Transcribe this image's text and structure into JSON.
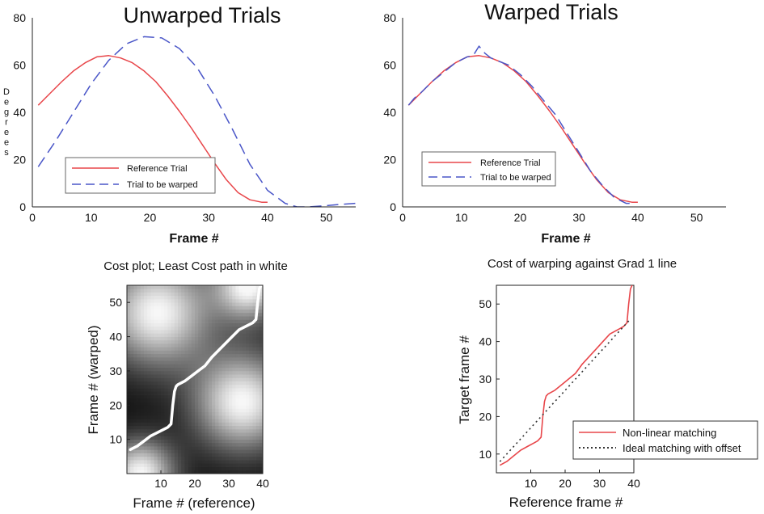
{
  "chart_data": [
    {
      "type": "line",
      "title": "Unwarped Trials",
      "xlabel": "Frame #",
      "ylabel": "Degrees",
      "xlim": [
        0,
        55
      ],
      "ylim": [
        0,
        80
      ],
      "xticks": [
        "0",
        "10",
        "20",
        "30",
        "40",
        "50"
      ],
      "yticks": [
        "0",
        "20",
        "40",
        "60",
        "80"
      ],
      "legend": "bottom-left",
      "series": [
        {
          "name": "Reference Trial",
          "color": "#e8464a",
          "style": "solid",
          "x": [
            1,
            3,
            5,
            7,
            9,
            11,
            13,
            15,
            17,
            19,
            21,
            23,
            25,
            27,
            29,
            31,
            33,
            35,
            37,
            39,
            40
          ],
          "y": [
            43,
            48,
            53,
            57.5,
            61,
            63.5,
            64,
            63,
            61,
            57.5,
            53,
            47,
            40.5,
            33.5,
            26,
            18.5,
            11.5,
            6,
            3,
            2,
            2
          ]
        },
        {
          "name": "Trial to be warped",
          "color": "#4a56c8",
          "style": "dashed",
          "x": [
            1,
            4,
            7,
            10,
            13,
            16,
            19,
            22,
            25,
            28,
            31,
            34,
            37,
            40,
            43,
            45,
            47,
            50,
            52,
            55
          ],
          "y": [
            17,
            28,
            40,
            52,
            62,
            69,
            72,
            71.5,
            67,
            59,
            47,
            33,
            18,
            7,
            1.5,
            0,
            0,
            0.5,
            1,
            1.5
          ]
        }
      ]
    },
    {
      "type": "line",
      "title": "Warped Trials",
      "xlabel": "Frame #",
      "xlim": [
        0,
        55
      ],
      "ylim": [
        0,
        80
      ],
      "xticks": [
        "0",
        "10",
        "20",
        "30",
        "40",
        "50"
      ],
      "yticks": [
        "0",
        "20",
        "40",
        "60",
        "80"
      ],
      "legend": "bottom-left",
      "series": [
        {
          "name": "Reference Trial",
          "color": "#e8464a",
          "style": "solid",
          "x": [
            1,
            3,
            5,
            7,
            9,
            11,
            13,
            15,
            17,
            19,
            21,
            23,
            25,
            27,
            29,
            31,
            33,
            35,
            37,
            39,
            40
          ],
          "y": [
            43,
            48,
            53,
            57.5,
            61,
            63.5,
            64,
            63,
            61,
            57.5,
            53,
            47,
            40.5,
            33.5,
            26,
            18.5,
            11.5,
            6,
            3,
            2,
            2
          ]
        },
        {
          "name": "Trial to be warped",
          "color": "#4a56c8",
          "style": "dashed",
          "x": [
            1,
            2,
            3,
            5,
            7,
            9,
            11,
            12,
            13,
            14,
            15,
            16,
            18,
            20,
            22,
            24,
            26,
            28,
            30,
            32,
            34,
            36,
            38,
            39
          ],
          "y": [
            43,
            46,
            48,
            53,
            57,
            61,
            63.5,
            64,
            68,
            65,
            63,
            62,
            60,
            56,
            51,
            45,
            39,
            31,
            23,
            15,
            9,
            4,
            1.5,
            1.5
          ]
        }
      ]
    },
    {
      "type": "heatmap",
      "title": "Cost plot; Least Cost path in white",
      "xlabel": "Frame # (reference)",
      "ylabel": "Frame # (warped)",
      "xlim": [
        0,
        40
      ],
      "ylim": [
        0,
        55
      ],
      "xticks": [
        "10",
        "20",
        "30",
        "40"
      ],
      "yticks": [
        "10",
        "20",
        "30",
        "40",
        "50"
      ],
      "path_color": "#ffffff",
      "path": {
        "x": [
          1,
          3,
          5,
          7,
          9,
          11,
          12,
          13,
          13.5,
          14,
          14.5,
          15,
          17,
          19,
          21,
          23,
          25,
          27,
          29,
          31,
          33,
          35,
          36,
          37,
          38,
          38.5,
          39,
          39.5
        ],
        "y": [
          7,
          8,
          9.5,
          11,
          12,
          13,
          13.5,
          14.5,
          20,
          24,
          25.5,
          26,
          27,
          28.5,
          30,
          31.5,
          34,
          36,
          38,
          40,
          42,
          43,
          43.5,
          44,
          45,
          50,
          54,
          55
        ]
      }
    },
    {
      "type": "line",
      "title": "Cost of warping against Grad 1 line",
      "xlabel": "Reference frame #",
      "ylabel": "Target frame #",
      "xlim": [
        0,
        40
      ],
      "ylim": [
        5,
        55
      ],
      "xticks": [
        "10",
        "20",
        "30",
        "40"
      ],
      "yticks": [
        "10",
        "20",
        "30",
        "40",
        "50"
      ],
      "legend": "bottom-right",
      "series": [
        {
          "name": "Non-linear matching",
          "color": "#e8464a",
          "style": "solid",
          "x": [
            1,
            3,
            5,
            7,
            9,
            11,
            12,
            13,
            13.5,
            14,
            14.5,
            15,
            17,
            19,
            21,
            23,
            25,
            27,
            29,
            31,
            33,
            35,
            36,
            37,
            38,
            38.5,
            39,
            39.5
          ],
          "y": [
            7,
            8,
            9.5,
            11,
            12,
            13,
            13.5,
            14.5,
            20,
            24,
            25.5,
            26,
            27,
            28.5,
            30,
            31.5,
            34,
            36,
            38,
            40,
            42,
            43,
            43.5,
            44,
            45,
            50,
            54,
            55
          ]
        },
        {
          "name": "Ideal matching with offset",
          "color": "#333333",
          "style": "dotted",
          "x": [
            1,
            39
          ],
          "y": [
            8,
            46
          ]
        }
      ]
    }
  ]
}
